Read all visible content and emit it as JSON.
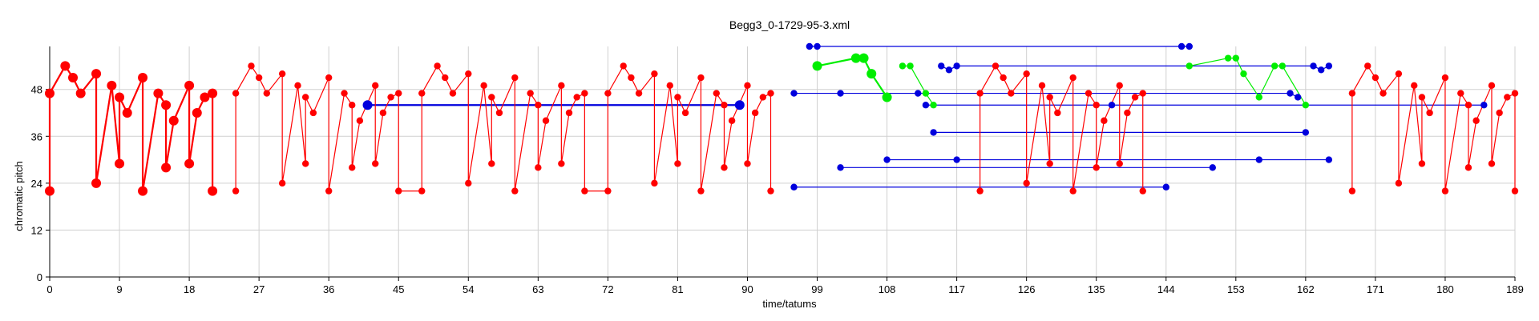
{
  "chart_data": {
    "type": "scatter",
    "title": "Begg3_0-1729-95-3.xml",
    "xlabel": "time/tatums",
    "ylabel": "chromatic pitch",
    "xlim": [
      0,
      189
    ],
    "ylim": [
      0,
      59
    ],
    "xticks": [
      0,
      9,
      18,
      27,
      36,
      45,
      54,
      63,
      72,
      81,
      90,
      99,
      108,
      117,
      126,
      135,
      144,
      153,
      162,
      171,
      180,
      189
    ],
    "yticks": [
      0,
      12,
      24,
      36,
      48
    ],
    "grid": true,
    "colors": {
      "red": "#ff0000",
      "blue": "#0000dd",
      "green": "#00ee00",
      "grid": "#d0d0d0"
    },
    "series": [
      {
        "color": "red",
        "marker": "large",
        "x": [
          0,
          0,
          2,
          3,
          4,
          6,
          6,
          8,
          9,
          9,
          10,
          12,
          12,
          14,
          15,
          15,
          16,
          18,
          18,
          19,
          20,
          21,
          21
        ],
        "y": [
          22,
          47,
          54,
          51,
          47,
          52,
          24,
          49,
          29,
          46,
          42,
          51,
          22,
          47,
          44,
          28,
          40,
          49,
          29,
          42,
          46,
          47,
          22
        ]
      },
      {
        "color": "red",
        "marker": "small",
        "x": [
          24,
          24,
          26,
          27,
          28,
          30,
          30,
          32,
          33,
          33,
          34,
          36,
          36,
          38,
          39,
          39,
          40,
          42,
          42,
          43,
          44,
          45,
          45,
          48,
          48,
          50,
          51,
          52,
          54,
          54,
          56,
          57,
          57,
          58,
          60,
          60,
          62,
          63,
          63,
          64,
          66,
          66,
          67,
          68,
          69,
          69,
          72,
          72,
          74,
          75,
          76,
          78,
          78,
          80,
          81,
          81,
          82,
          84,
          84,
          86,
          87,
          87,
          88,
          90,
          90,
          91,
          92,
          93,
          93
        ],
        "y": [
          22,
          47,
          54,
          51,
          47,
          52,
          24,
          49,
          29,
          46,
          42,
          51,
          22,
          47,
          44,
          28,
          40,
          49,
          29,
          42,
          46,
          47,
          22,
          22,
          47,
          54,
          51,
          47,
          52,
          24,
          49,
          29,
          46,
          42,
          51,
          22,
          47,
          44,
          28,
          40,
          49,
          29,
          42,
          46,
          47,
          22,
          22,
          47,
          54,
          51,
          47,
          52,
          24,
          49,
          29,
          46,
          42,
          51,
          22,
          47,
          44,
          28,
          40,
          49,
          29,
          42,
          46,
          47,
          22
        ]
      },
      {
        "color": "red",
        "marker": "small",
        "x": [
          120,
          120,
          122,
          123,
          124,
          126,
          126,
          128,
          129,
          129,
          130,
          132,
          132,
          134,
          135,
          135,
          136,
          138,
          138,
          139,
          140,
          141,
          141
        ],
        "y": [
          22,
          47,
          54,
          51,
          47,
          52,
          24,
          49,
          29,
          46,
          42,
          51,
          22,
          47,
          44,
          28,
          40,
          49,
          29,
          42,
          46,
          47,
          22
        ]
      },
      {
        "color": "red",
        "marker": "small",
        "x": [
          168,
          168,
          170,
          171,
          172,
          174,
          174,
          176,
          177,
          177,
          178,
          180,
          180,
          182,
          183,
          183,
          184,
          186,
          186,
          187,
          188,
          189,
          189
        ],
        "y": [
          22,
          47,
          54,
          51,
          47,
          52,
          24,
          49,
          29,
          46,
          42,
          51,
          22,
          47,
          44,
          28,
          40,
          49,
          29,
          42,
          46,
          47,
          22
        ]
      },
      {
        "color": "green",
        "marker": "large",
        "x": [
          99,
          104,
          105,
          106,
          108
        ],
        "y": [
          54,
          56,
          56,
          52,
          46
        ]
      },
      {
        "color": "green",
        "marker": "small",
        "x": [
          110,
          111,
          113,
          114
        ],
        "y": [
          54,
          54,
          47,
          44
        ]
      },
      {
        "color": "green",
        "marker": "small",
        "x": [
          147,
          152,
          153,
          154,
          156,
          158,
          159,
          162
        ],
        "y": [
          54,
          56,
          56,
          52,
          46,
          54,
          54,
          44
        ]
      }
    ],
    "segments": [
      {
        "color": "blue",
        "marker": "large",
        "x": [
          41,
          89
        ],
        "y": [
          44,
          44
        ]
      },
      {
        "color": "blue",
        "marker": "small",
        "x": [
          98,
          99,
          146,
          147
        ],
        "y": [
          59,
          59,
          59,
          59
        ]
      },
      {
        "color": "blue",
        "marker": "small",
        "x": [
          96,
          102,
          112,
          160,
          161
        ],
        "y": [
          47,
          47,
          47,
          47,
          46
        ]
      },
      {
        "color": "blue",
        "marker": "small",
        "x": [
          115,
          116,
          117,
          163,
          164,
          165
        ],
        "y": [
          54,
          53,
          54,
          54,
          53,
          54
        ]
      },
      {
        "color": "blue",
        "marker": "small",
        "x": [
          113,
          137,
          185
        ],
        "y": [
          44,
          44,
          44
        ]
      },
      {
        "color": "blue",
        "marker": "small",
        "x": [
          114,
          162
        ],
        "y": [
          37,
          37
        ]
      },
      {
        "color": "blue",
        "marker": "small",
        "x": [
          108,
          117,
          156,
          165
        ],
        "y": [
          30,
          30,
          30,
          30
        ]
      },
      {
        "color": "blue",
        "marker": "small",
        "x": [
          102,
          150
        ],
        "y": [
          28,
          28
        ]
      },
      {
        "color": "blue",
        "marker": "small",
        "x": [
          96,
          144
        ],
        "y": [
          23,
          23
        ]
      }
    ]
  }
}
